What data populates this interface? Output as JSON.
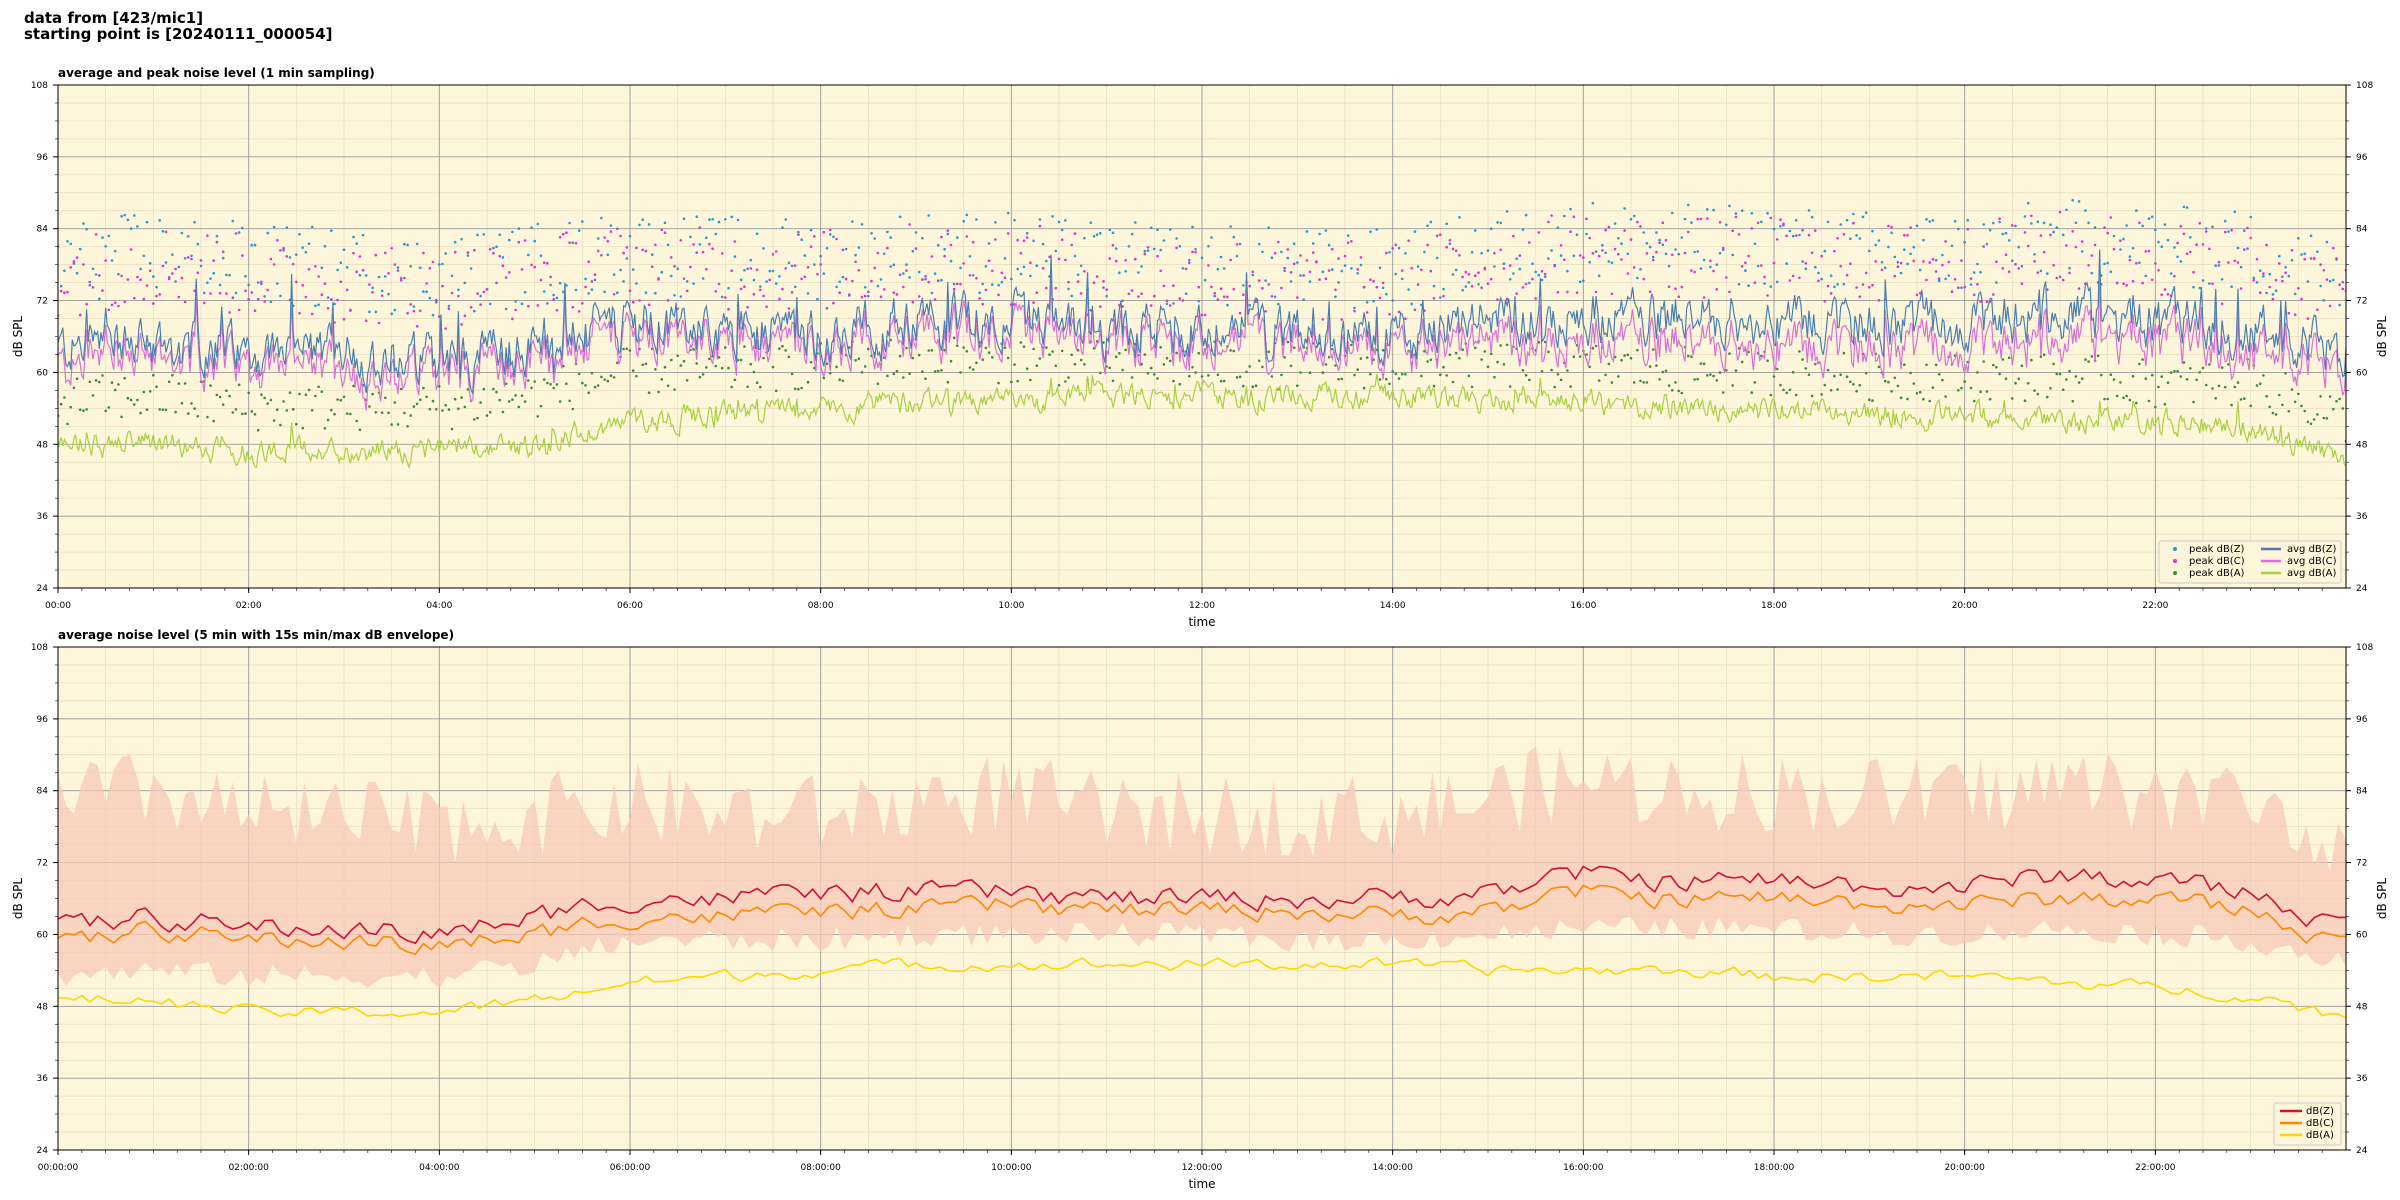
{
  "header": {
    "line1": "data from [423/mic1]",
    "line2": "starting point is [20240111_000054]"
  },
  "colors": {
    "background": "#fdf6da",
    "peak_z": "#1f9ad6",
    "peak_c": "#e030d0",
    "peak_a": "#3a8a3a",
    "avg_z": "#4a7fb0",
    "avg_c": "#da70d6",
    "avg_a": "#a8d040",
    "db_z": "#d0103a",
    "db_c": "#ff8800",
    "db_a": "#ffd700",
    "envelope": "#f6c8b8"
  },
  "chart_data": [
    {
      "type": "line",
      "title": "average and peak noise level (1 min sampling)",
      "xlabel": "time",
      "ylabel": "dB SPL",
      "ylim": [
        24,
        108
      ],
      "yticks": [
        24,
        36,
        48,
        60,
        72,
        84,
        96,
        108
      ],
      "xlim_hours": [
        0,
        24
      ],
      "xticks": [
        "00:00",
        "02:00",
        "04:00",
        "06:00",
        "08:00",
        "10:00",
        "12:00",
        "14:00",
        "16:00",
        "18:00",
        "20:00",
        "22:00"
      ],
      "grid": true,
      "legend_position": "bottom-right",
      "anchor_hours": [
        0,
        1,
        2,
        3,
        4,
        5,
        6,
        7,
        8,
        9,
        10,
        11,
        12,
        13,
        14,
        15,
        16,
        17,
        18,
        19,
        20,
        21,
        22,
        23,
        24
      ],
      "series": [
        {
          "name": "avg dB(Z)",
          "kind": "line",
          "values": [
            64,
            65,
            63,
            63,
            62,
            64,
            68,
            67,
            67,
            68,
            69,
            67,
            67,
            66,
            66,
            68,
            70,
            69,
            69,
            68,
            68,
            70,
            68,
            67,
            63
          ]
        },
        {
          "name": "avg dB(C)",
          "kind": "line",
          "values": [
            61,
            63,
            61,
            60,
            60,
            62,
            66,
            65,
            65,
            66,
            67,
            65,
            65,
            64,
            64,
            65,
            66,
            65,
            65,
            64,
            64,
            66,
            65,
            64,
            60
          ]
        },
        {
          "name": "avg dB(A)",
          "kind": "line",
          "values": [
            48,
            48,
            47,
            47,
            47,
            48,
            52,
            53,
            54,
            55,
            55,
            56,
            56,
            56,
            56,
            55,
            55,
            54,
            54,
            53,
            53,
            52,
            52,
            51,
            45
          ]
        },
        {
          "name": "peak dB(Z)",
          "kind": "scatter",
          "values": [
            76,
            78,
            76,
            75,
            74,
            76,
            78,
            77,
            77,
            78,
            78,
            76,
            76,
            75,
            75,
            78,
            80,
            79,
            79,
            78,
            78,
            80,
            79,
            78,
            73
          ]
        },
        {
          "name": "peak dB(C)",
          "kind": "scatter",
          "values": [
            74,
            76,
            74,
            73,
            72,
            74,
            76,
            75,
            75,
            76,
            76,
            74,
            74,
            73,
            73,
            76,
            78,
            77,
            77,
            76,
            76,
            78,
            77,
            76,
            71
          ]
        },
        {
          "name": "peak dB(A)",
          "kind": "scatter",
          "values": [
            54,
            55,
            53,
            53,
            53,
            55,
            59,
            59,
            60,
            61,
            61,
            60,
            60,
            60,
            60,
            60,
            60,
            59,
            59,
            58,
            58,
            58,
            57,
            57,
            51
          ]
        }
      ],
      "legend": [
        {
          "name": "peak dB(Z)",
          "color_key": "peak_z",
          "kind": "dot"
        },
        {
          "name": "peak dB(C)",
          "color_key": "peak_c",
          "kind": "dot"
        },
        {
          "name": "peak dB(A)",
          "color_key": "peak_a",
          "kind": "dot"
        },
        {
          "name": "avg dB(Z)",
          "color_key": "avg_z",
          "kind": "line"
        },
        {
          "name": "avg dB(C)",
          "color_key": "avg_c",
          "kind": "line"
        },
        {
          "name": "avg dB(A)",
          "color_key": "avg_a",
          "kind": "line"
        }
      ]
    },
    {
      "type": "line",
      "title": "average noise level (5 min with 15s min/max dB envelope)",
      "xlabel": "time",
      "ylabel": "dB SPL",
      "ylim": [
        24,
        108
      ],
      "yticks": [
        24,
        36,
        48,
        60,
        72,
        84,
        96,
        108
      ],
      "xlim_hours": [
        0,
        24
      ],
      "xticks": [
        "00:00:00",
        "02:00:00",
        "04:00:00",
        "06:00:00",
        "08:00:00",
        "10:00:00",
        "12:00:00",
        "14:00:00",
        "16:00:00",
        "18:00:00",
        "20:00:00",
        "22:00:00"
      ],
      "grid": true,
      "legend_position": "bottom-right",
      "anchor_hours": [
        0,
        1,
        2,
        3,
        4,
        5,
        6,
        7,
        8,
        9,
        10,
        11,
        12,
        13,
        14,
        15,
        16,
        17,
        18,
        19,
        20,
        21,
        22,
        23,
        24
      ],
      "envelope": {
        "min": [
          53,
          54,
          53,
          53,
          53,
          55,
          59,
          59,
          59,
          60,
          60,
          60,
          60,
          59,
          59,
          60,
          61,
          61,
          61,
          60,
          60,
          61,
          60,
          59,
          55
        ],
        "max": [
          82,
          84,
          80,
          79,
          78,
          80,
          82,
          80,
          80,
          82,
          84,
          80,
          80,
          80,
          80,
          83,
          86,
          84,
          84,
          83,
          83,
          85,
          84,
          82,
          76
        ]
      },
      "series": [
        {
          "name": "dB(Z)",
          "kind": "line",
          "values": [
            61,
            63,
            61,
            61,
            60,
            63,
            66,
            66,
            67,
            67,
            67,
            66,
            66,
            66,
            66,
            67,
            70,
            69,
            69,
            68,
            68,
            70,
            69,
            67,
            61
          ]
        },
        {
          "name": "dB(C)",
          "kind": "line",
          "values": [
            58,
            61,
            59,
            59,
            58,
            60,
            63,
            63,
            64,
            64,
            65,
            64,
            64,
            64,
            63,
            64,
            67,
            66,
            66,
            65,
            65,
            66,
            66,
            64,
            58
          ]
        },
        {
          "name": "dB(A)",
          "kind": "line",
          "values": [
            49,
            49,
            47,
            47,
            47,
            49,
            52,
            53,
            54,
            55,
            55,
            55,
            55,
            55,
            55,
            54,
            54,
            54,
            53,
            53,
            53,
            52,
            51,
            50,
            46
          ]
        }
      ],
      "legend": [
        {
          "name": "dB(Z)",
          "color_key": "db_z",
          "kind": "line"
        },
        {
          "name": "dB(C)",
          "color_key": "db_c",
          "kind": "line"
        },
        {
          "name": "dB(A)",
          "color_key": "db_a",
          "kind": "line"
        }
      ]
    }
  ]
}
